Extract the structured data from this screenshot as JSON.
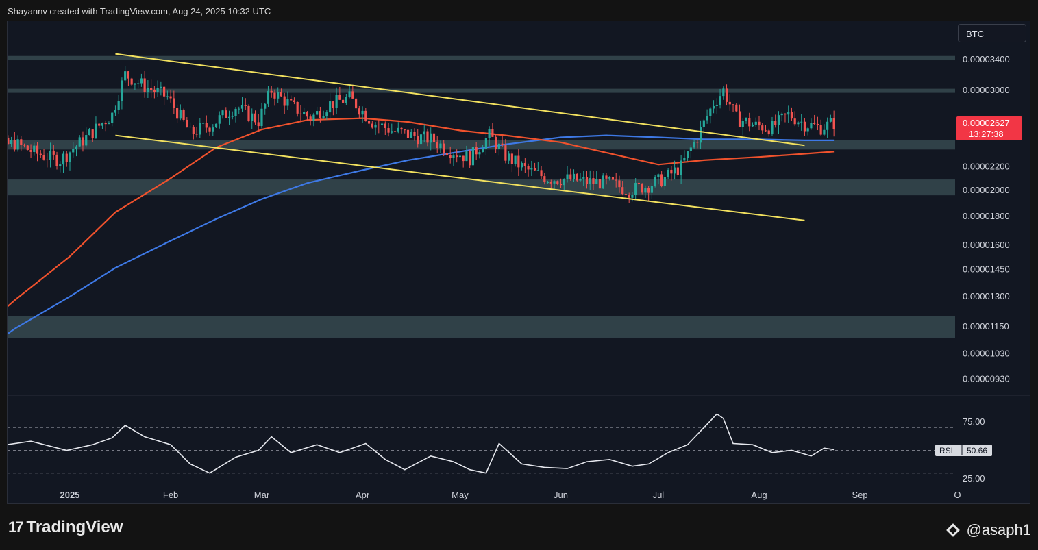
{
  "header": {
    "credit": "Shayannv created with TradingView.com, Aug 24, 2025 10:32 UTC"
  },
  "symbol": "BTC",
  "footer": {
    "brand": "TradingView",
    "watermark": "@asaph1"
  },
  "colors": {
    "zone": "#36494f",
    "channel": "#f2e15f",
    "ma_short": "#f0522d",
    "ma_long": "#3e79e6",
    "candle_up": "#26a69a",
    "candle_down": "#ef5350",
    "rsi": "#e6e8ee"
  },
  "chart_data": [
    {
      "type": "candlestick",
      "title": "",
      "yscale": "log",
      "ylim": [
        8.7e-06,
        4.1e-06
      ],
      "y_tick_labels": [
        "0.00003400",
        "0.00003000",
        "0.00002200",
        "0.00002000",
        "0.00001800",
        "0.00001600",
        "0.00001450",
        "0.00001300",
        "0.00001150",
        "0.00001030",
        "0.00000930"
      ],
      "x_tick_labels": [
        "2025",
        "Feb",
        "Mar",
        "Apr",
        "May",
        "Jun",
        "Jul",
        "Aug",
        "Sep",
        "O"
      ],
      "last_price": {
        "value": "0.00002627",
        "countdown": "13:27:38"
      },
      "zones": [
        {
          "from": 3.39e-05,
          "to": 3.45e-05
        },
        {
          "from": 2.97e-05,
          "to": 3.02e-05
        },
        {
          "from": 2.36e-05,
          "to": 2.45e-05
        },
        {
          "from": 1.96e-05,
          "to": 2.09e-05
        },
        {
          "from": 1.1e-05,
          "to": 1.2e-05
        }
      ],
      "channel_lines": [
        {
          "from": [
            "2025-01-15",
            3.48e-05
          ],
          "to": [
            "2025-08-15",
            2.4e-05
          ]
        },
        {
          "from": [
            "2025-01-15",
            2.5e-05
          ],
          "to": [
            "2025-08-15",
            1.77e-05
          ]
        }
      ],
      "moving_averages": {
        "short": {
          "dates": [
            "2024-12-01",
            "2024-12-15",
            "2025-01-01",
            "2025-01-15",
            "2025-02-01",
            "2025-02-15",
            "2025-03-01",
            "2025-03-15",
            "2025-04-01",
            "2025-04-15",
            "2025-05-01",
            "2025-05-15",
            "2025-06-01",
            "2025-06-15",
            "2025-07-01",
            "2025-07-15",
            "2025-08-01",
            "2025-08-15",
            "2025-08-24"
          ],
          "values": [
            1.09e-05,
            1.28e-05,
            1.53e-05,
            1.83e-05,
            2.1e-05,
            2.38e-05,
            2.56e-05,
            2.66e-05,
            2.68e-05,
            2.64e-05,
            2.55e-05,
            2.5e-05,
            2.43e-05,
            2.33e-05,
            2.22e-05,
            2.26e-05,
            2.29e-05,
            2.32e-05,
            2.34e-05
          ]
        },
        "long": {
          "dates": [
            "2024-12-01",
            "2024-12-15",
            "2025-01-01",
            "2025-01-15",
            "2025-02-01",
            "2025-02-15",
            "2025-03-01",
            "2025-03-15",
            "2025-04-01",
            "2025-04-15",
            "2025-05-01",
            "2025-05-15",
            "2025-06-01",
            "2025-06-15",
            "2025-07-01",
            "2025-07-15",
            "2025-08-01",
            "2025-08-15",
            "2025-08-24"
          ],
          "values": [
            1e-05,
            1.14e-05,
            1.3e-05,
            1.46e-05,
            1.63e-05,
            1.78e-05,
            1.93e-05,
            2.06e-05,
            2.17e-05,
            2.26e-05,
            2.34e-05,
            2.41e-05,
            2.48e-05,
            2.5e-05,
            2.48e-05,
            2.46e-05,
            2.46e-05,
            2.45e-05,
            2.45e-05
          ]
        }
      },
      "price_path": {
        "dates": [
          "2024-12-01",
          "2024-12-08",
          "2024-12-15",
          "2024-12-22",
          "2024-12-29",
          "2025-01-05",
          "2025-01-10",
          "2025-01-14",
          "2025-01-18",
          "2025-01-24",
          "2025-01-31",
          "2025-02-07",
          "2025-02-14",
          "2025-02-21",
          "2025-02-28",
          "2025-03-04",
          "2025-03-10",
          "2025-03-16",
          "2025-03-22",
          "2025-03-28",
          "2025-04-04",
          "2025-04-10",
          "2025-04-16",
          "2025-04-22",
          "2025-04-28",
          "2025-05-04",
          "2025-05-10",
          "2025-05-15",
          "2025-05-21",
          "2025-05-28",
          "2025-06-04",
          "2025-06-10",
          "2025-06-16",
          "2025-06-22",
          "2025-06-28",
          "2025-07-03",
          "2025-07-08",
          "2025-07-13",
          "2025-07-18",
          "2025-07-21",
          "2025-07-25",
          "2025-07-31",
          "2025-08-05",
          "2025-08-10",
          "2025-08-15",
          "2025-08-20",
          "2025-08-24"
        ],
        "values": [
          2.4e-05,
          2.38e-05,
          2.42e-05,
          2.32e-05,
          2.26e-05,
          2.45e-05,
          2.6e-05,
          2.72e-05,
          3.2e-05,
          3.05e-05,
          2.92e-05,
          2.52e-05,
          2.62e-05,
          2.81e-05,
          2.65e-05,
          3e-05,
          2.82e-05,
          2.68e-05,
          2.84e-05,
          2.91e-05,
          2.64e-05,
          2.55e-05,
          2.5e-05,
          2.46e-05,
          2.35e-05,
          2.28e-05,
          2.5e-05,
          2.3e-05,
          2.18e-05,
          2.1e-05,
          2.09e-05,
          2.07e-05,
          2.06e-05,
          2e-05,
          2.04e-05,
          2.1e-05,
          2.2e-05,
          2.48e-05,
          2.85e-05,
          3e-05,
          2.68e-05,
          2.6e-05,
          2.58e-05,
          2.72e-05,
          2.62e-05,
          2.58e-05,
          2.63e-05
        ]
      }
    },
    {
      "type": "line",
      "title": "",
      "series": [
        {
          "name": "RSI",
          "last_value": "50.66"
        }
      ],
      "ylim": [
        15,
        100
      ],
      "y_tick_labels": [
        "75.00",
        "25.00"
      ],
      "guide_levels": [
        70,
        50,
        30
      ],
      "dates": [
        "2024-12-01",
        "2024-12-10",
        "2024-12-20",
        "2024-12-31",
        "2025-01-08",
        "2025-01-14",
        "2025-01-18",
        "2025-01-24",
        "2025-02-01",
        "2025-02-07",
        "2025-02-13",
        "2025-02-21",
        "2025-02-28",
        "2025-03-04",
        "2025-03-10",
        "2025-03-18",
        "2025-03-25",
        "2025-04-02",
        "2025-04-08",
        "2025-04-14",
        "2025-04-22",
        "2025-04-29",
        "2025-05-04",
        "2025-05-09",
        "2025-05-13",
        "2025-05-20",
        "2025-05-27",
        "2025-06-03",
        "2025-06-09",
        "2025-06-16",
        "2025-06-23",
        "2025-06-28",
        "2025-07-04",
        "2025-07-10",
        "2025-07-15",
        "2025-07-19",
        "2025-07-21",
        "2025-07-24",
        "2025-07-30",
        "2025-08-05",
        "2025-08-11",
        "2025-08-17",
        "2025-08-21",
        "2025-08-24"
      ],
      "values": [
        58,
        54,
        58,
        50,
        55,
        61,
        72,
        62,
        55,
        38,
        30,
        44,
        50,
        62,
        48,
        55,
        48,
        56,
        42,
        33,
        45,
        40,
        33,
        30,
        56,
        38,
        35,
        34,
        40,
        42,
        36,
        38,
        48,
        55,
        70,
        82,
        78,
        56,
        55,
        48,
        50,
        45,
        52,
        50.66
      ]
    }
  ]
}
